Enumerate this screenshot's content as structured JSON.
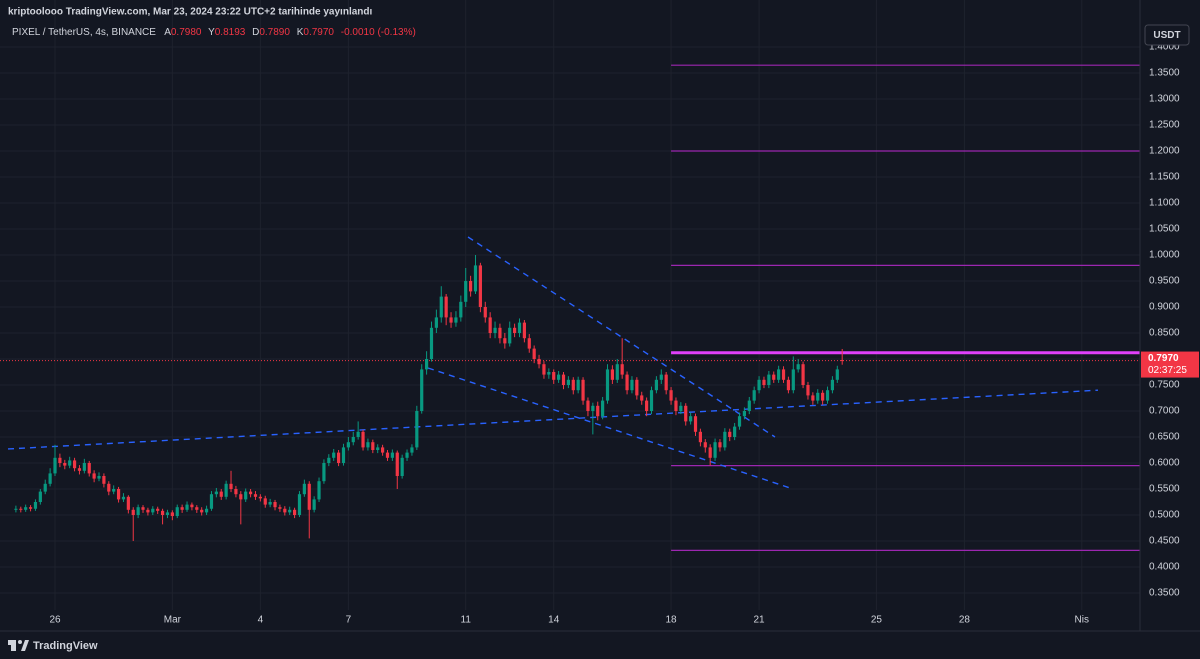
{
  "chart_data": {
    "type": "candlestick",
    "title": "kriptoolooo TradingView.com, Mar 23, 2024 23:22 UTC+2 tarihinde yayınlandı",
    "symbol": "PIXEL / TetherUS, 4s, BINANCE",
    "ohlc_header": [
      {
        "label": "A",
        "value": "0.7980"
      },
      {
        "label": "Y",
        "value": "0.8193"
      },
      {
        "label": "D",
        "value": "0.7890"
      },
      {
        "label": "K",
        "value": "0.7970"
      }
    ],
    "change": "-0.0010 (-0.13%)",
    "currency": "USDT",
    "last_price_label": "0.7970",
    "countdown": "02:37:25",
    "brand": "TradingView",
    "up_color": "#089981",
    "down_color": "#f23645",
    "grid": true,
    "categories": [
      null,
      null,
      null,
      null,
      null,
      null,
      null,
      null,
      "26",
      null,
      null,
      null,
      null,
      null,
      null,
      null,
      null,
      null,
      null,
      null,
      null,
      null,
      null,
      null,
      null,
      null,
      null,
      null,
      null,
      null,
      null,
      null,
      "Mar",
      null,
      null,
      null,
      null,
      null,
      null,
      null,
      null,
      null,
      null,
      null,
      null,
      null,
      null,
      null,
      null,
      null,
      "4",
      null,
      null,
      null,
      null,
      null,
      null,
      null,
      null,
      null,
      null,
      null,
      null,
      null,
      null,
      null,
      null,
      null,
      "7",
      null,
      null,
      null,
      null,
      null,
      null,
      null,
      null,
      null,
      null,
      null,
      null,
      null,
      null,
      null,
      null,
      null,
      null,
      null,
      null,
      null,
      null,
      null,
      "11",
      null,
      null,
      null,
      null,
      null,
      null,
      null,
      null,
      null,
      null,
      null,
      null,
      null,
      null,
      null,
      null,
      null,
      "14",
      null,
      null,
      null,
      null,
      null,
      null,
      null,
      null,
      null,
      null,
      null,
      null,
      null,
      null,
      null,
      null,
      null,
      null,
      null,
      null,
      null,
      null,
      null,
      "18",
      null,
      null,
      null,
      null,
      null,
      null,
      null,
      null,
      null,
      null,
      null,
      null,
      null,
      null,
      null,
      null,
      null,
      "21",
      null,
      null,
      null,
      null,
      null,
      null,
      null,
      null,
      null,
      null,
      null,
      null,
      null,
      null,
      null,
      null,
      null,
      null,
      null,
      null,
      null,
      null,
      null,
      "25",
      null,
      null,
      null,
      null,
      null,
      null,
      null,
      null,
      null,
      null,
      null,
      null,
      null,
      null,
      null,
      null,
      null,
      "28",
      null,
      null,
      null,
      null,
      null,
      null,
      null,
      null,
      null,
      null,
      null,
      null,
      null,
      null,
      null,
      null,
      null,
      null,
      null,
      null,
      null,
      null,
      null,
      "Nis",
      null,
      null,
      null,
      null,
      null,
      null,
      null,
      null,
      null,
      null,
      null
    ],
    "open": [
      0.51,
      0.512,
      0.51,
      0.515,
      0.512,
      0.525,
      0.545,
      0.56,
      0.58,
      0.61,
      0.6,
      0.595,
      0.605,
      0.59,
      0.585,
      0.6,
      0.58,
      0.57,
      0.575,
      0.56,
      0.545,
      0.55,
      0.53,
      0.535,
      0.51,
      0.5,
      0.515,
      0.51,
      0.505,
      0.512,
      0.508,
      0.5,
      0.505,
      0.498,
      0.515,
      0.51,
      0.52,
      0.515,
      0.51,
      0.505,
      0.512,
      0.54,
      0.545,
      0.535,
      0.56,
      0.55,
      0.54,
      0.53,
      0.545,
      0.54,
      0.535,
      0.532,
      0.52,
      0.525,
      0.515,
      0.512,
      0.505,
      0.51,
      0.5,
      0.54,
      0.56,
      0.51,
      0.53,
      0.565,
      0.6,
      0.61,
      0.62,
      0.6,
      0.63,
      0.64,
      0.65,
      0.66,
      0.63,
      0.64,
      0.625,
      0.63,
      0.62,
      0.61,
      0.62,
      0.575,
      0.61,
      0.62,
      0.63,
      0.7,
      0.78,
      0.8,
      0.86,
      0.88,
      0.92,
      0.88,
      0.87,
      0.88,
      0.91,
      0.95,
      0.93,
      0.98,
      0.9,
      0.88,
      0.85,
      0.86,
      0.84,
      0.83,
      0.86,
      0.85,
      0.87,
      0.84,
      0.82,
      0.8,
      0.79,
      0.77,
      0.775,
      0.76,
      0.77,
      0.75,
      0.76,
      0.74,
      0.76,
      0.72,
      0.7,
      0.71,
      0.69,
      0.72,
      0.78,
      0.76,
      0.79,
      0.77,
      0.74,
      0.76,
      0.73,
      0.72,
      0.7,
      0.74,
      0.76,
      0.77,
      0.74,
      0.72,
      0.7,
      0.71,
      0.68,
      0.69,
      0.66,
      0.64,
      0.63,
      0.61,
      0.64,
      0.63,
      0.66,
      0.65,
      0.67,
      0.69,
      0.7,
      0.72,
      0.74,
      0.76,
      0.75,
      0.77,
      0.76,
      0.78,
      0.76,
      0.74,
      0.78,
      0.79,
      0.75,
      0.73,
      0.72,
      0.735,
      0.72,
      0.74,
      0.76,
      0.798,
      null,
      null,
      null,
      null,
      null,
      null,
      null,
      null,
      null,
      null,
      null,
      null,
      null,
      null,
      null,
      null,
      null,
      null,
      null,
      null,
      null,
      null,
      null,
      null,
      null,
      null,
      null,
      null,
      null,
      null,
      null,
      null,
      null,
      null,
      null,
      null,
      null,
      null,
      null,
      null,
      null,
      null,
      null,
      null,
      null,
      null,
      null,
      null,
      null,
      null,
      null,
      null,
      null,
      null,
      null,
      null,
      null,
      null,
      null,
      null
    ],
    "high": [
      0.518,
      0.516,
      0.52,
      0.519,
      0.53,
      0.55,
      0.568,
      0.59,
      0.635,
      0.618,
      0.606,
      0.612,
      0.61,
      0.596,
      0.608,
      0.604,
      0.586,
      0.582,
      0.58,
      0.565,
      0.557,
      0.554,
      0.542,
      0.538,
      0.515,
      0.52,
      0.519,
      0.514,
      0.517,
      0.516,
      0.512,
      0.51,
      0.509,
      0.52,
      0.52,
      0.526,
      0.524,
      0.519,
      0.515,
      0.518,
      0.546,
      0.552,
      0.55,
      0.566,
      0.585,
      0.556,
      0.546,
      0.551,
      0.55,
      0.546,
      0.54,
      0.537,
      0.531,
      0.529,
      0.52,
      0.517,
      0.516,
      0.514,
      0.546,
      0.568,
      0.565,
      0.536,
      0.572,
      0.607,
      0.617,
      0.627,
      0.625,
      0.637,
      0.65,
      0.66,
      0.68,
      0.664,
      0.647,
      0.645,
      0.636,
      0.635,
      0.625,
      0.626,
      0.624,
      0.616,
      0.626,
      0.636,
      0.71,
      0.79,
      0.815,
      0.872,
      0.895,
      0.94,
      0.925,
      0.89,
      0.892,
      0.922,
      0.975,
      0.96,
      1.0,
      0.985,
      0.91,
      0.89,
      0.872,
      0.868,
      0.85,
      0.872,
      0.868,
      0.878,
      0.875,
      0.848,
      0.826,
      0.808,
      0.796,
      0.782,
      0.78,
      0.777,
      0.775,
      0.767,
      0.765,
      0.766,
      0.765,
      0.726,
      0.716,
      0.718,
      0.727,
      0.79,
      0.788,
      0.8,
      0.84,
      0.776,
      0.767,
      0.765,
      0.737,
      0.726,
      0.747,
      0.767,
      0.78,
      0.775,
      0.746,
      0.726,
      0.717,
      0.715,
      0.697,
      0.695,
      0.666,
      0.646,
      0.636,
      0.647,
      0.646,
      0.667,
      0.666,
      0.677,
      0.697,
      0.707,
      0.727,
      0.747,
      0.767,
      0.766,
      0.777,
      0.776,
      0.787,
      0.786,
      0.766,
      0.805,
      0.8,
      0.795,
      0.756,
      0.736,
      0.742,
      0.74,
      0.747,
      0.767,
      0.787,
      0.8193,
      null,
      null,
      null,
      null,
      null,
      null,
      null,
      null,
      null,
      null,
      null,
      null,
      null,
      null,
      null,
      null,
      null,
      null,
      null,
      null,
      null,
      null,
      null,
      null,
      null,
      null,
      null,
      null,
      null,
      null,
      null,
      null,
      null,
      null,
      null,
      null,
      null,
      null,
      null,
      null,
      null,
      null,
      null,
      null,
      null,
      null,
      null,
      null,
      null,
      null,
      null,
      null,
      null,
      null,
      null,
      null,
      null,
      null,
      null,
      null
    ],
    "low": [
      0.505,
      0.505,
      0.506,
      0.507,
      0.508,
      0.52,
      0.54,
      0.555,
      0.575,
      0.592,
      0.588,
      0.59,
      0.584,
      0.578,
      0.58,
      0.574,
      0.563,
      0.565,
      0.553,
      0.538,
      0.54,
      0.524,
      0.525,
      0.503,
      0.45,
      0.494,
      0.504,
      0.499,
      0.5,
      0.502,
      0.482,
      0.494,
      0.49,
      0.494,
      0.504,
      0.506,
      0.509,
      0.504,
      0.499,
      0.5,
      0.508,
      0.534,
      0.529,
      0.53,
      0.544,
      0.534,
      0.482,
      0.525,
      0.534,
      0.529,
      0.526,
      0.514,
      0.515,
      0.509,
      0.506,
      0.499,
      0.5,
      0.494,
      0.496,
      0.535,
      0.455,
      0.505,
      0.525,
      0.56,
      0.594,
      0.604,
      0.594,
      0.595,
      0.624,
      0.634,
      0.645,
      0.624,
      0.624,
      0.619,
      0.619,
      0.614,
      0.604,
      0.604,
      0.55,
      0.57,
      0.604,
      0.614,
      0.625,
      0.695,
      0.77,
      0.795,
      0.85,
      0.87,
      0.865,
      0.86,
      0.862,
      0.872,
      0.9,
      0.92,
      0.925,
      0.89,
      0.87,
      0.84,
      0.84,
      0.83,
      0.82,
      0.824,
      0.842,
      0.842,
      0.832,
      0.812,
      0.792,
      0.782,
      0.762,
      0.762,
      0.752,
      0.754,
      0.742,
      0.744,
      0.732,
      0.734,
      0.712,
      0.69,
      0.655,
      0.682,
      0.684,
      0.714,
      0.752,
      0.754,
      0.762,
      0.732,
      0.734,
      0.722,
      0.712,
      0.69,
      0.694,
      0.734,
      0.752,
      0.732,
      0.712,
      0.692,
      0.694,
      0.672,
      0.674,
      0.652,
      0.632,
      0.62,
      0.595,
      0.604,
      0.622,
      0.624,
      0.642,
      0.644,
      0.664,
      0.684,
      0.694,
      0.714,
      0.734,
      0.744,
      0.744,
      0.754,
      0.754,
      0.754,
      0.734,
      0.734,
      0.774,
      0.744,
      0.722,
      0.712,
      0.714,
      0.712,
      0.714,
      0.734,
      0.754,
      0.789,
      null,
      null,
      null,
      null,
      null,
      null,
      null,
      null,
      null,
      null,
      null,
      null,
      null,
      null,
      null,
      null,
      null,
      null,
      null,
      null,
      null,
      null,
      null,
      null,
      null,
      null,
      null,
      null,
      null,
      null,
      null,
      null,
      null,
      null,
      null,
      null,
      null,
      null,
      null,
      null,
      null,
      null,
      null,
      null,
      null,
      null,
      null,
      null,
      null,
      null,
      null,
      null,
      null,
      null,
      null,
      null,
      null,
      null,
      null,
      null
    ],
    "close": [
      0.512,
      0.51,
      0.515,
      0.512,
      0.525,
      0.545,
      0.56,
      0.58,
      0.61,
      0.6,
      0.595,
      0.605,
      0.59,
      0.585,
      0.6,
      0.58,
      0.57,
      0.575,
      0.56,
      0.545,
      0.55,
      0.53,
      0.535,
      0.51,
      0.5,
      0.515,
      0.51,
      0.505,
      0.512,
      0.508,
      0.5,
      0.505,
      0.498,
      0.515,
      0.51,
      0.52,
      0.515,
      0.51,
      0.505,
      0.512,
      0.54,
      0.545,
      0.535,
      0.56,
      0.55,
      0.54,
      0.53,
      0.545,
      0.54,
      0.535,
      0.532,
      0.52,
      0.525,
      0.515,
      0.512,
      0.505,
      0.51,
      0.5,
      0.54,
      0.56,
      0.51,
      0.53,
      0.565,
      0.6,
      0.61,
      0.62,
      0.6,
      0.63,
      0.64,
      0.65,
      0.66,
      0.63,
      0.64,
      0.625,
      0.63,
      0.62,
      0.61,
      0.62,
      0.575,
      0.61,
      0.62,
      0.63,
      0.7,
      0.78,
      0.8,
      0.86,
      0.88,
      0.92,
      0.88,
      0.87,
      0.88,
      0.91,
      0.95,
      0.93,
      0.98,
      0.9,
      0.88,
      0.85,
      0.86,
      0.84,
      0.83,
      0.86,
      0.85,
      0.87,
      0.84,
      0.82,
      0.8,
      0.79,
      0.77,
      0.775,
      0.76,
      0.77,
      0.75,
      0.76,
      0.74,
      0.76,
      0.72,
      0.7,
      0.71,
      0.69,
      0.72,
      0.78,
      0.76,
      0.79,
      0.77,
      0.74,
      0.76,
      0.73,
      0.72,
      0.7,
      0.74,
      0.76,
      0.77,
      0.74,
      0.72,
      0.7,
      0.71,
      0.68,
      0.69,
      0.66,
      0.64,
      0.63,
      0.61,
      0.64,
      0.63,
      0.66,
      0.65,
      0.67,
      0.69,
      0.7,
      0.72,
      0.74,
      0.76,
      0.75,
      0.77,
      0.76,
      0.78,
      0.76,
      0.74,
      0.78,
      0.79,
      0.75,
      0.73,
      0.72,
      0.735,
      0.72,
      0.74,
      0.76,
      0.78,
      0.797,
      null,
      null,
      null,
      null,
      null,
      null,
      null,
      null,
      null,
      null,
      null,
      null,
      null,
      null,
      null,
      null,
      null,
      null,
      null,
      null,
      null,
      null,
      null,
      null,
      null,
      null,
      null,
      null,
      null,
      null,
      null,
      null,
      null,
      null,
      null,
      null,
      null,
      null,
      null,
      null,
      null,
      null,
      null,
      null,
      null,
      null,
      null,
      null,
      null,
      null,
      null,
      null,
      null,
      null,
      null,
      null,
      null,
      null,
      null,
      null
    ],
    "ylim": [
      0.3173,
      1.4481
    ],
    "yticks": [
      {
        "value": 0.35,
        "label": "0.3500"
      },
      {
        "value": 0.4,
        "label": "0.4000"
      },
      {
        "value": 0.45,
        "label": "0.4500"
      },
      {
        "value": 0.5,
        "label": "0.5000"
      },
      {
        "value": 0.55,
        "label": "0.5500"
      },
      {
        "value": 0.6,
        "label": "0.6000"
      },
      {
        "value": 0.65,
        "label": "0.6500"
      },
      {
        "value": 0.7,
        "label": "0.7000"
      },
      {
        "value": 0.75,
        "label": "0.7500"
      },
      {
        "value": 0.8,
        "label": "0.8000"
      },
      {
        "value": 0.85,
        "label": "0.8500"
      },
      {
        "value": 0.9,
        "label": "0.9000"
      },
      {
        "value": 0.95,
        "label": "0.9500"
      },
      {
        "value": 1.0,
        "label": "1.0000"
      },
      {
        "value": 1.05,
        "label": "1.0500"
      },
      {
        "value": 1.1,
        "label": "1.1000"
      },
      {
        "value": 1.15,
        "label": "1.1500"
      },
      {
        "value": 1.2,
        "label": "1.2000"
      },
      {
        "value": 1.25,
        "label": "1.2500"
      },
      {
        "value": 1.3,
        "label": "1.3000"
      },
      {
        "value": 1.35,
        "label": "1.3500"
      },
      {
        "value": 1.4,
        "label": "1.4000"
      }
    ],
    "levels": [
      {
        "value": 1.365,
        "color": "#9c27b0"
      },
      {
        "value": 1.2,
        "color": "#9c27b0"
      },
      {
        "value": 0.98,
        "color": "#9c27b0"
      },
      {
        "value": 0.812,
        "color": "#e040fb",
        "bold": true
      },
      {
        "value": 0.595,
        "color": "#9c27b0"
      },
      {
        "value": 0.432,
        "color": "#9c27b0"
      }
    ],
    "trendlines": [
      {
        "values": [
          0.627,
          0.74
        ],
        "color": "#2962ff"
      },
      {
        "values": [
          1.0346,
          0.65
        ],
        "color": "#2962ff"
      },
      {
        "values": [
          0.7827,
          0.552
        ],
        "color": "#2962ff"
      }
    ]
  }
}
